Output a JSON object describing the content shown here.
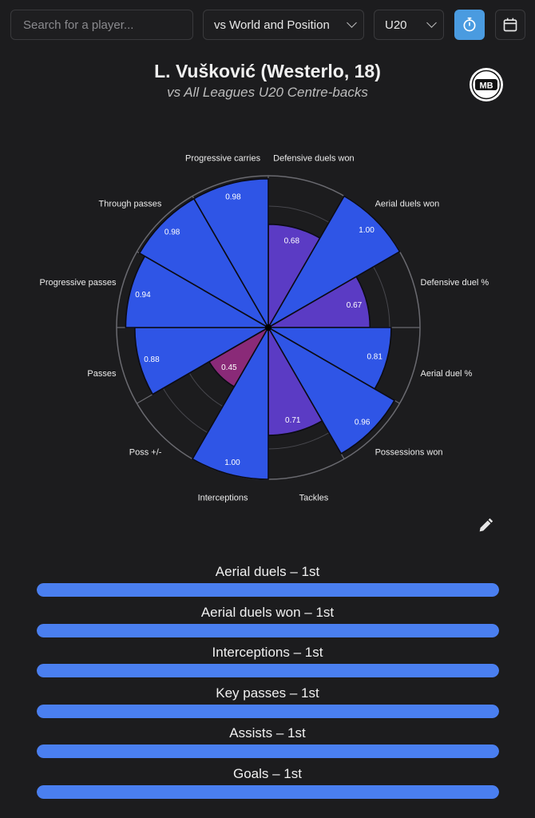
{
  "toolbar": {
    "search_placeholder": "Search for a player...",
    "comparison_select": "vs World and Position",
    "age_select": "U20",
    "timer_icon": "stopwatch-icon",
    "calendar_icon": "calendar-icon"
  },
  "header": {
    "title": "L. Vušković (Westerlo, 18)",
    "subtitle": "vs All Leagues U20 Centre-backs",
    "logo_text": "MB"
  },
  "colors": {
    "blue": "#2f55e6",
    "purple": "#5b3bc4",
    "magenta": "#8a2a78",
    "rank_bar": "#4a7ff0",
    "accent_button": "#4a9be0"
  },
  "chart_data": {
    "type": "radar-polar-area",
    "range": [
      0,
      1
    ],
    "grid": true,
    "metrics": [
      {
        "label": "Defensive duels won",
        "value": 0.68,
        "value_label": "0.68",
        "color": "purple"
      },
      {
        "label": "Aerial duels won",
        "value": 1.0,
        "value_label": "1.00",
        "color": "blue"
      },
      {
        "label": "Defensive duel %",
        "value": 0.67,
        "value_label": "0.67",
        "color": "purple"
      },
      {
        "label": "Aerial duel %",
        "value": 0.81,
        "value_label": "0.81",
        "color": "blue"
      },
      {
        "label": "Possessions won",
        "value": 0.96,
        "value_label": "0.96",
        "color": "blue"
      },
      {
        "label": "Tackles",
        "value": 0.71,
        "value_label": "0.71",
        "color": "purple"
      },
      {
        "label": "Interceptions",
        "value": 1.0,
        "value_label": "1.00",
        "color": "blue"
      },
      {
        "label": "Poss +/-",
        "value": 0.45,
        "value_label": "0.45",
        "color": "magenta"
      },
      {
        "label": "Passes",
        "value": 0.88,
        "value_label": "0.88",
        "color": "blue"
      },
      {
        "label": "Progressive passes",
        "value": 0.94,
        "value_label": "0.94",
        "color": "blue"
      },
      {
        "label": "Through passes",
        "value": 0.98,
        "value_label": "0.98",
        "color": "blue"
      },
      {
        "label": "Progressive carries",
        "value": 0.98,
        "value_label": "0.98",
        "color": "blue"
      }
    ]
  },
  "edit_icon": "pencil-icon",
  "rankings": [
    {
      "label": "Aerial duels – 1st",
      "fill": 1.0
    },
    {
      "label": "Aerial duels won – 1st",
      "fill": 1.0
    },
    {
      "label": "Interceptions – 1st",
      "fill": 1.0
    },
    {
      "label": "Key passes – 1st",
      "fill": 1.0
    },
    {
      "label": "Assists – 1st",
      "fill": 1.0
    },
    {
      "label": "Goals – 1st",
      "fill": 1.0
    }
  ]
}
